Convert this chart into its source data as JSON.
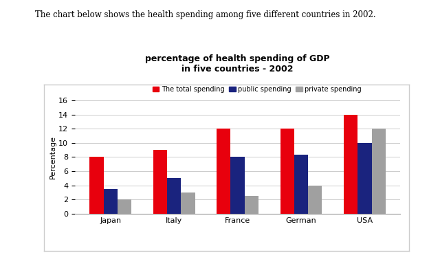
{
  "title_line1": "percentage of health spending of GDP",
  "title_line2": "in five countries - 2002",
  "suptitle": "The chart below shows the health spending among five different countries in 2002.",
  "categories": [
    "Japan",
    "Italy",
    "France",
    "German",
    "USA"
  ],
  "series": {
    "The total spending": [
      8,
      9,
      12,
      12,
      14
    ],
    "public spending": [
      3.5,
      5,
      8,
      8.3,
      10
    ],
    "private spending": [
      2,
      3,
      2.5,
      4,
      12
    ]
  },
  "colors": {
    "The total spending": "#e8000d",
    "public spending": "#1a237e",
    "private spending": "#a0a0a0"
  },
  "ylabel": "Percentage",
  "ylim": [
    0,
    16
  ],
  "yticks": [
    0,
    2,
    4,
    6,
    8,
    10,
    12,
    14,
    16
  ],
  "legend_labels": [
    "The total spending",
    "public spending",
    "private spending"
  ],
  "page_bg": "#ffffff",
  "chart_bg": "#ffffff",
  "border_color": "#cccccc",
  "bar_width": 0.22
}
